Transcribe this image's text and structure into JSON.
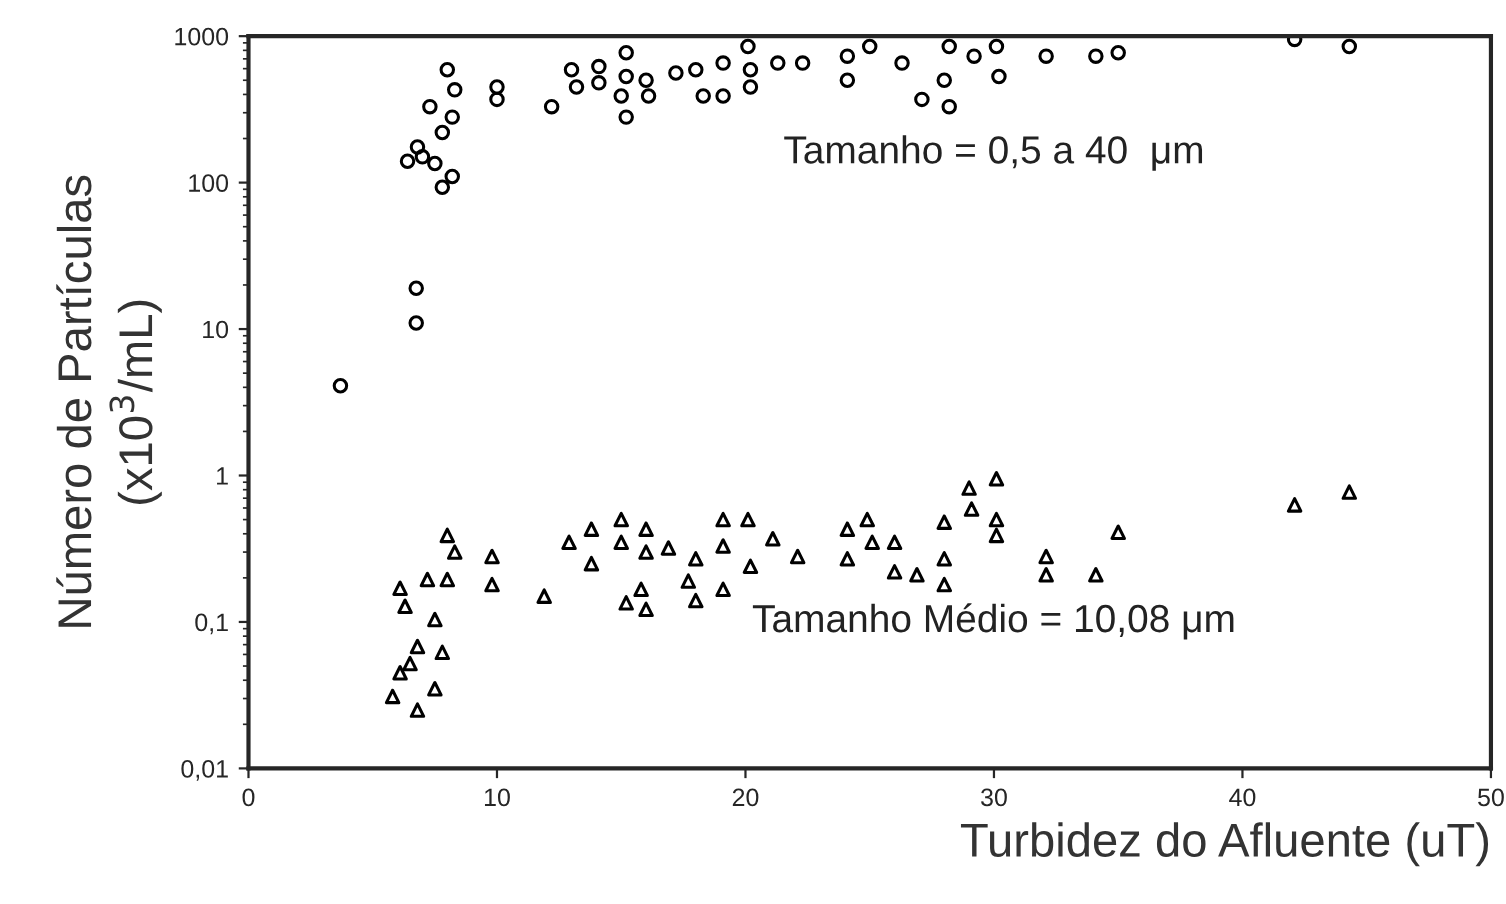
{
  "chart_data": {
    "type": "scatter",
    "xlabel": "Turbidez do Afluente (uT)",
    "ylabel": "Número de Partículas\n(x10$^{3}$/mL)",
    "log": "y",
    "grid": false,
    "legend": false,
    "xlim": [
      0,
      50
    ],
    "xticks": [
      0,
      10,
      20,
      30,
      40,
      50
    ],
    "ylim": [
      0.01,
      1000
    ],
    "yticks": [
      {
        "value": 0.01,
        "label": "0,01"
      },
      {
        "value": 0.1,
        "label": "0,1"
      },
      1,
      10,
      100,
      1000
    ],
    "annotations": [
      "Tamanho = 0,5 a 40  μm",
      "Tamanho Médio = 10,08 μm"
    ],
    "series": [
      {
        "color": "#000000",
        "marker": "circle",
        "x": [
          3.7,
          6.75,
          6.75,
          8.0,
          7.3,
          8.3,
          8.2,
          7.8,
          6.4,
          7.0,
          7.5,
          7.8,
          8.2,
          6.8,
          10.0,
          10.0,
          12.2,
          13.0,
          13.2,
          14.1,
          14.1,
          15.2,
          15.2,
          15.0,
          15.2,
          16.0,
          16.1,
          17.2,
          18.0,
          18.3,
          19.1,
          19.1,
          20.1,
          20.2,
          20.2,
          21.3,
          22.3,
          24.1,
          24.1,
          25.0,
          26.3,
          28.2,
          28.0,
          27.1,
          28.2,
          29.2,
          30.1,
          30.2,
          32.1,
          34.1,
          35.0,
          42.1,
          44.3
        ],
        "values": [
          4.1,
          19,
          11,
          590,
          330,
          430,
          280,
          220,
          140,
          150,
          135,
          93,
          110,
          175,
          450,
          370,
          330,
          590,
          450,
          620,
          480,
          770,
          530,
          390,
          280,
          500,
          390,
          560,
          590,
          390,
          390,
          655,
          850,
          590,
          450,
          655,
          655,
          730,
          500,
          850,
          655,
          850,
          500,
          370,
          330,
          730,
          850,
          530,
          730,
          730,
          770,
          950,
          850
        ]
      },
      {
        "color": "#000000",
        "marker": "triangle",
        "x": [
          6.1,
          6.3,
          7.2,
          8.0,
          8.3,
          8.0,
          7.5,
          7.8,
          6.1,
          5.8,
          6.8,
          7.5,
          6.8,
          6.5,
          9.8,
          9.8,
          11.9,
          12.9,
          13.8,
          13.8,
          15.0,
          15.0,
          16.0,
          16.0,
          15.8,
          15.2,
          16.0,
          16.9,
          18.0,
          18.0,
          17.7,
          19.1,
          19.1,
          19.1,
          20.1,
          20.2,
          21.1,
          22.1,
          24.1,
          24.1,
          24.9,
          25.1,
          26.0,
          26.0,
          26.9,
          28.0,
          28.0,
          28.0,
          29.0,
          29.1,
          30.1,
          30.1,
          30.1,
          32.1,
          32.1,
          34.1,
          35.0,
          42.1,
          44.3
        ],
        "values": [
          0.17,
          0.128,
          0.195,
          0.39,
          0.3,
          0.195,
          0.104,
          0.062,
          0.045,
          0.031,
          0.025,
          0.035,
          0.068,
          0.052,
          0.28,
          0.18,
          0.15,
          0.35,
          0.43,
          0.25,
          0.5,
          0.35,
          0.43,
          0.3,
          0.167,
          0.135,
          0.122,
          0.32,
          0.27,
          0.14,
          0.19,
          0.5,
          0.33,
          0.167,
          0.5,
          0.24,
          0.37,
          0.28,
          0.43,
          0.27,
          0.5,
          0.35,
          0.35,
          0.22,
          0.21,
          0.48,
          0.27,
          0.18,
          0.82,
          0.59,
          0.95,
          0.5,
          0.39,
          0.28,
          0.21,
          0.21,
          0.41,
          0.63,
          0.77
        ]
      }
    ]
  }
}
